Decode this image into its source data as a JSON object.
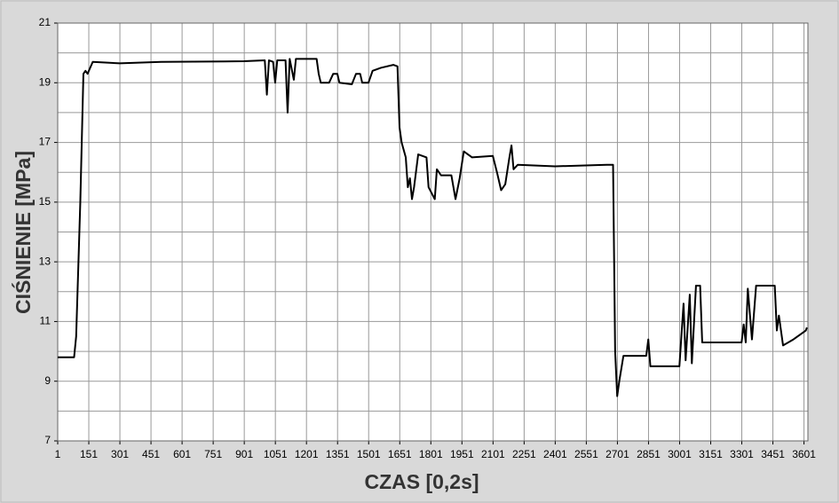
{
  "chart_data": {
    "type": "line",
    "x_label": "CZAS [0,2s]",
    "y_label": "CIŚNIENIE [MPa]",
    "xlim": [
      1,
      3620
    ],
    "ylim": [
      7,
      21
    ],
    "xticks": [
      1,
      151,
      301,
      451,
      601,
      751,
      901,
      1051,
      1201,
      1351,
      1501,
      1651,
      1801,
      1951,
      2101,
      2251,
      2401,
      2551,
      2701,
      2851,
      3001,
      3151,
      3301,
      3451,
      3601
    ],
    "yticks": [
      7,
      9,
      11,
      13,
      15,
      17,
      19,
      21
    ],
    "minor_ygrid": [
      8,
      10,
      12,
      14,
      16,
      18,
      20
    ],
    "grid": true,
    "series": [
      {
        "color": "#000000",
        "x": [
          1,
          80,
          90,
          110,
          125,
          135,
          145,
          170,
          300,
          500,
          900,
          1000,
          1010,
          1020,
          1040,
          1050,
          1060,
          1100,
          1110,
          1120,
          1140,
          1150,
          1250,
          1260,
          1270,
          1310,
          1330,
          1350,
          1360,
          1420,
          1440,
          1460,
          1470,
          1500,
          1520,
          1560,
          1620,
          1640,
          1650,
          1660,
          1680,
          1690,
          1700,
          1710,
          1720,
          1740,
          1780,
          1790,
          1820,
          1830,
          1850,
          1900,
          1920,
          1940,
          1960,
          2000,
          2100,
          2120,
          2140,
          2160,
          2180,
          2190,
          2200,
          2220,
          2400,
          2650,
          2680,
          2690,
          2700,
          2710,
          2730,
          2780,
          2840,
          2850,
          2860,
          3000,
          3020,
          3030,
          3050,
          3060,
          3080,
          3100,
          3110,
          3300,
          3310,
          3320,
          3330,
          3350,
          3370,
          3460,
          3470,
          3480,
          3500,
          3550,
          3610,
          3615
        ],
        "values": [
          9.8,
          9.8,
          10.5,
          15,
          19.3,
          19.4,
          19.3,
          19.7,
          19.65,
          19.7,
          19.72,
          19.75,
          18.6,
          19.75,
          19.7,
          19.0,
          19.75,
          19.75,
          18.0,
          19.8,
          19.1,
          19.8,
          19.8,
          19.3,
          19.0,
          19.0,
          19.3,
          19.3,
          19.0,
          18.95,
          19.3,
          19.3,
          19.0,
          19.0,
          19.4,
          19.5,
          19.6,
          19.55,
          17.5,
          17.0,
          16.5,
          15.5,
          15.8,
          15.1,
          15.5,
          16.6,
          16.5,
          15.5,
          15.1,
          16.1,
          15.9,
          15.9,
          15.1,
          15.8,
          16.7,
          16.5,
          16.55,
          16.0,
          15.4,
          15.6,
          16.5,
          16.9,
          16.1,
          16.25,
          16.2,
          16.25,
          16.25,
          10.0,
          8.5,
          9.0,
          9.85,
          9.85,
          9.85,
          10.4,
          9.5,
          9.5,
          11.6,
          9.7,
          11.9,
          9.6,
          12.2,
          12.2,
          10.3,
          10.3,
          10.9,
          10.3,
          12.1,
          10.4,
          12.2,
          12.2,
          10.7,
          11.2,
          10.2,
          10.4,
          10.7,
          10.8
        ]
      }
    ]
  }
}
